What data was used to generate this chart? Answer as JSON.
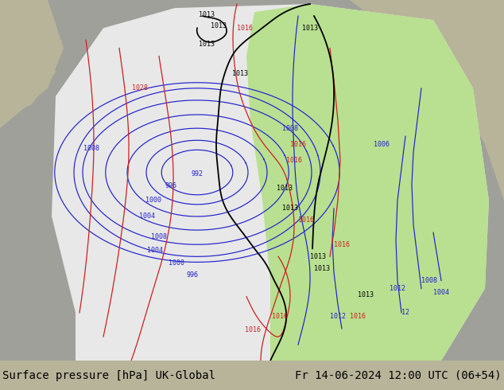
{
  "title_left": "Surface pressure [hPa] UK-Global",
  "title_right": "Fr 14-06-2024 12:00 UTC (06+54)",
  "bg_color_tan": "#b8b49a",
  "bg_color_gray": "#a8a8a8",
  "map_white": "#ececec",
  "map_green": "#aad48a",
  "footer_bg": "#c8c8c8",
  "black": "#000000",
  "blue": "#2020cc",
  "red": "#cc2020",
  "font_size_title": 10,
  "font_size_label": 6
}
